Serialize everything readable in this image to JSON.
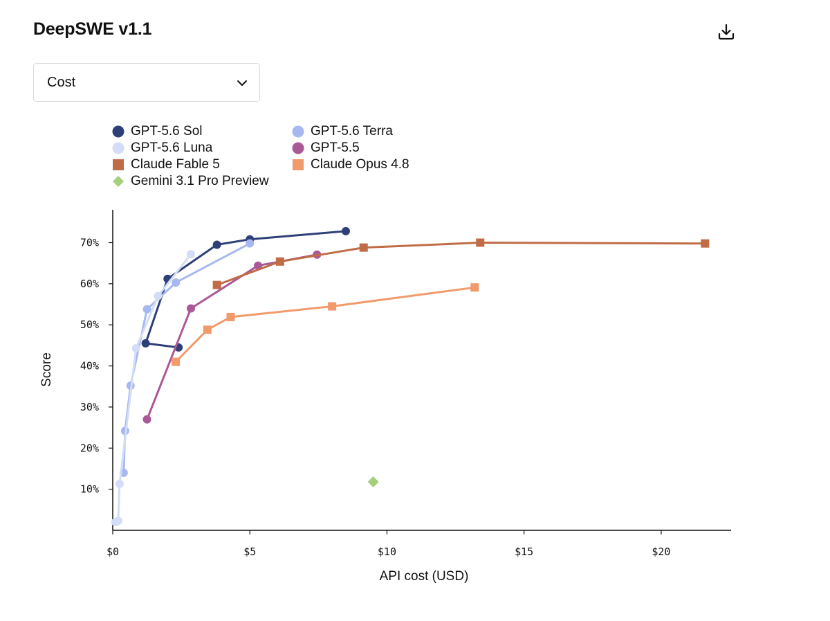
{
  "header": {
    "title": "DeepSWE v1.1",
    "download_icon": "download-icon"
  },
  "metric_select": {
    "value": "Cost",
    "icon": "chevron-down-icon"
  },
  "chart_data": {
    "type": "line",
    "xlabel": "API cost (USD)",
    "ylabel": "Score",
    "xlim": [
      0,
      22.5
    ],
    "ylim": [
      0,
      78
    ],
    "x_ticks": [
      0,
      5,
      10,
      15,
      20
    ],
    "x_tick_labels": [
      "$0",
      "$5",
      "$10",
      "$15",
      "$20"
    ],
    "y_ticks": [
      10,
      20,
      30,
      40,
      50,
      60,
      70
    ],
    "y_tick_labels": [
      "10%",
      "20%",
      "30%",
      "40%",
      "50%",
      "60%",
      "70%"
    ],
    "grid": false,
    "legend_placement": "top-left",
    "series": [
      {
        "name": "GPT-5.6 Sol",
        "color": "#2e3f78",
        "marker": "circle",
        "points": [
          [
            2.4,
            44.5
          ],
          [
            1.2,
            45.5
          ],
          [
            2.0,
            61.2
          ],
          [
            3.8,
            69.5
          ],
          [
            5.0,
            70.8
          ],
          [
            8.5,
            72.8
          ]
        ]
      },
      {
        "name": "GPT-5.6 Terra",
        "color": "#a6b8ef",
        "marker": "circle",
        "points": [
          [
            0.4,
            14.0
          ],
          [
            0.45,
            24.2
          ],
          [
            0.65,
            35.2
          ],
          [
            1.25,
            53.8
          ],
          [
            2.3,
            60.3
          ],
          [
            5.0,
            69.8
          ]
        ]
      },
      {
        "name": "GPT-5.6 Luna",
        "color": "#d3ddf7",
        "marker": "circle",
        "points": [
          [
            0.1,
            2.0
          ],
          [
            0.2,
            2.3
          ],
          [
            0.25,
            11.3
          ],
          [
            0.85,
            44.3
          ],
          [
            1.65,
            57.0
          ],
          [
            2.85,
            67.2
          ]
        ]
      },
      {
        "name": "GPT-5.5",
        "color": "#ab5896",
        "marker": "circle",
        "points": [
          [
            1.25,
            27.0
          ],
          [
            2.85,
            54.0
          ],
          [
            5.3,
            64.4
          ],
          [
            7.45,
            67.1
          ]
        ]
      },
      {
        "name": "Claude Fable 5",
        "color": "#c06c47",
        "marker": "square",
        "points": [
          [
            3.8,
            59.7
          ],
          [
            6.1,
            65.4
          ],
          [
            9.15,
            68.8
          ],
          [
            13.4,
            70.0
          ],
          [
            21.6,
            69.8
          ]
        ]
      },
      {
        "name": "Claude Opus 4.8",
        "color": "#f19a6c",
        "marker": "square",
        "points": [
          [
            2.3,
            41.0
          ],
          [
            3.45,
            48.8
          ],
          [
            4.3,
            51.9
          ],
          [
            8.0,
            54.5
          ],
          [
            13.2,
            59.1
          ]
        ]
      },
      {
        "name": "Gemini 3.1 Pro Preview",
        "color": "#a6cf7c",
        "marker": "diamond",
        "points": [
          [
            9.5,
            11.8
          ]
        ]
      }
    ]
  }
}
